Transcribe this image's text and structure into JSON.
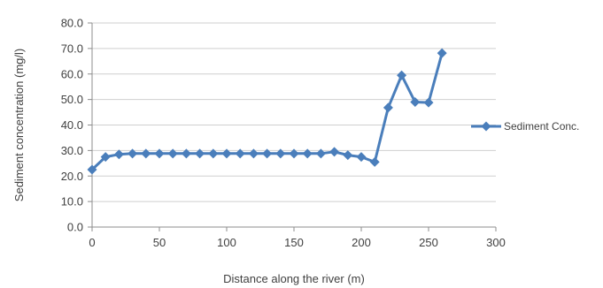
{
  "chart_data": {
    "type": "line",
    "xlabel": "Distance along the river (m)",
    "ylabel": "Sediment concentration (mg/l)",
    "xlim": [
      0,
      300
    ],
    "ylim": [
      0,
      80
    ],
    "xticks": [
      "0",
      "50",
      "100",
      "150",
      "200",
      "250",
      "300"
    ],
    "yticks": [
      "0.0",
      "10.0",
      "20.0",
      "30.0",
      "40.0",
      "50.0",
      "60.0",
      "70.0",
      "80.0"
    ],
    "grid": "horizontal",
    "legend_position": "right",
    "series": [
      {
        "name": "Sediment Conc.",
        "color": "#4a7ebb",
        "marker": "diamond",
        "x": [
          0,
          10,
          20,
          30,
          40,
          50,
          60,
          70,
          80,
          90,
          100,
          110,
          120,
          130,
          140,
          150,
          160,
          170,
          180,
          190,
          200,
          210,
          220,
          230,
          240,
          250,
          260
        ],
        "y": [
          22.5,
          27.5,
          28.5,
          28.8,
          28.8,
          28.8,
          28.8,
          28.8,
          28.8,
          28.8,
          28.8,
          28.8,
          28.8,
          28.8,
          28.8,
          28.8,
          28.8,
          28.8,
          29.5,
          28.2,
          27.5,
          25.5,
          46.8,
          59.5,
          49.0,
          48.8,
          68.2
        ]
      }
    ]
  }
}
